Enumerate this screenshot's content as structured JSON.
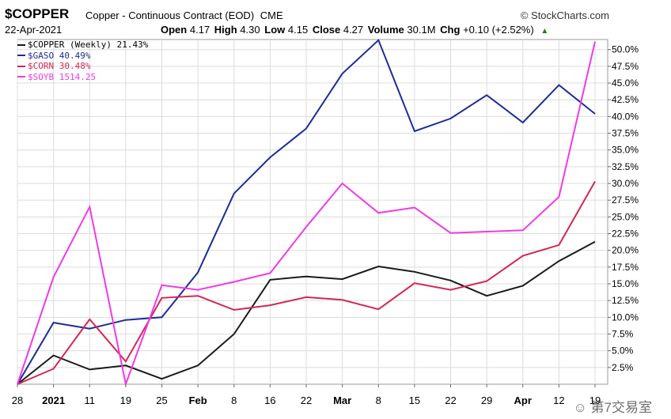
{
  "header": {
    "symbol": "$COPPER",
    "description": "Copper - Continuous Contract (EOD)",
    "exchange": "CME",
    "brand": "© StockCharts.com",
    "date": "22-Apr-2021",
    "open_label": "Open",
    "open_value": "4.17",
    "high_label": "High",
    "high_value": "4.30",
    "low_label": "Low",
    "low_value": "4.15",
    "close_label": "Close",
    "close_value": "4.27",
    "volume_label": "Volume",
    "volume_value": "30.1M",
    "chg_label": "Chg",
    "chg_value": "+0.10 (+2.52%)"
  },
  "watermark": "第7交易室",
  "chart_data": {
    "type": "line",
    "x": [
      "28",
      "2021",
      "11",
      "19",
      "25",
      "Feb",
      "8",
      "16",
      "22",
      "Mar",
      "8",
      "15",
      "22",
      "29",
      "Apr",
      "12",
      "19"
    ],
    "x_bold": [
      "2021",
      "Feb",
      "Mar",
      "Apr"
    ],
    "ylim": [
      0,
      51.5
    ],
    "y_ticks": [
      "2.5%",
      "5.0%",
      "7.5%",
      "10.0%",
      "12.5%",
      "15.0%",
      "17.5%",
      "20.0%",
      "22.5%",
      "25.0%",
      "27.5%",
      "30.0%",
      "32.5%",
      "35.0%",
      "37.5%",
      "40.0%",
      "42.5%",
      "45.0%",
      "47.5%",
      "50.0%"
    ],
    "y_tick_values": [
      2.5,
      5,
      7.5,
      10,
      12.5,
      15,
      17.5,
      20,
      22.5,
      25,
      27.5,
      30,
      32.5,
      35,
      37.5,
      40,
      42.5,
      45,
      47.5,
      50
    ],
    "grid": true,
    "legend_position": "top-left",
    "series": [
      {
        "name": "$COPPER (Weekly) 21.43%",
        "color": "#1a1a1a",
        "values": [
          0,
          4.3,
          2.2,
          2.8,
          0.8,
          2.8,
          7.5,
          15.6,
          16.1,
          15.7,
          17.6,
          16.8,
          15.5,
          13.2,
          14.7,
          18.4,
          21.3
        ]
      },
      {
        "name": "$GASO 40.49%",
        "color": "#1e2c96",
        "values": [
          0,
          9.2,
          8.3,
          9.6,
          10.0,
          16.7,
          28.5,
          33.9,
          38.2,
          46.4,
          51.4,
          37.8,
          39.7,
          43.2,
          39.1,
          44.7,
          40.4
        ]
      },
      {
        "name": "$CORN 30.48%",
        "color": "#d32752",
        "values": [
          0,
          2.3,
          9.7,
          3.4,
          12.9,
          13.2,
          11.1,
          11.8,
          13.0,
          12.6,
          11.2,
          15.1,
          14.1,
          15.4,
          19.2,
          20.8,
          30.3
        ]
      },
      {
        "name": "$SOYB 1514.25",
        "color": "#f03ae6",
        "values": [
          0,
          16.0,
          26.5,
          0,
          14.8,
          14.1,
          15.3,
          16.6,
          23.5,
          30.0,
          25.6,
          26.4,
          22.6,
          22.8,
          23.0,
          28.0,
          51.2
        ]
      }
    ]
  }
}
